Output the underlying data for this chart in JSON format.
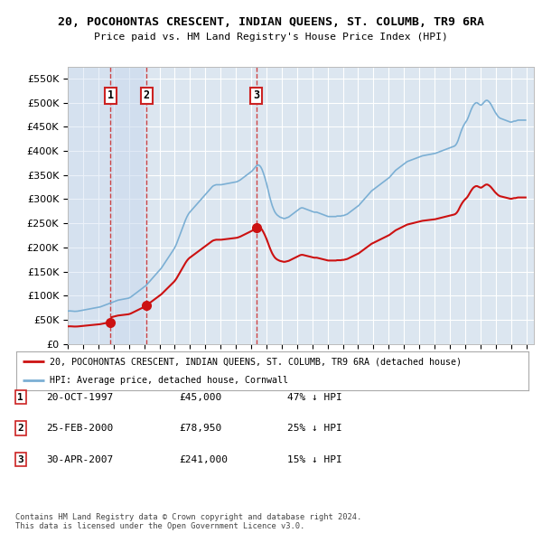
{
  "title": "20, POCOHONTAS CRESCENT, INDIAN QUEENS, ST. COLUMB, TR9 6RA",
  "subtitle": "Price paid vs. HM Land Registry's House Price Index (HPI)",
  "background_color": "#ffffff",
  "plot_bg_color": "#dce6f0",
  "grid_color": "#ffffff",
  "ylim": [
    0,
    575000
  ],
  "yticks": [
    0,
    50000,
    100000,
    150000,
    200000,
    250000,
    300000,
    350000,
    400000,
    450000,
    500000,
    550000
  ],
  "xlim_start": 1995.0,
  "xlim_end": 2025.5,
  "sale_dates": [
    1997.8,
    2000.15,
    2007.33
  ],
  "sale_prices": [
    45000,
    78950,
    241000
  ],
  "sale_labels": [
    "1",
    "2",
    "3"
  ],
  "hpi_line_color": "#7bafd4",
  "price_line_color": "#cc1111",
  "sale_dot_color": "#cc1111",
  "dashed_line_color": "#cc3333",
  "legend_line1": "20, POCOHONTAS CRESCENT, INDIAN QUEENS, ST. COLUMB, TR9 6RA (detached house)",
  "legend_line2": "HPI: Average price, detached house, Cornwall",
  "table_entries": [
    {
      "num": "1",
      "date": "20-OCT-1997",
      "price": "£45,000",
      "note": "47% ↓ HPI"
    },
    {
      "num": "2",
      "date": "25-FEB-2000",
      "price": "£78,950",
      "note": "25% ↓ HPI"
    },
    {
      "num": "3",
      "date": "30-APR-2007",
      "price": "£241,000",
      "note": "15% ↓ HPI"
    }
  ],
  "footer": "Contains HM Land Registry data © Crown copyright and database right 2024.\nThis data is licensed under the Open Government Licence v3.0.",
  "hpi_data": {
    "1995-01": 68000,
    "1995-02": 68200,
    "1995-03": 68100,
    "1995-04": 67800,
    "1995-05": 67500,
    "1995-06": 67300,
    "1995-07": 67400,
    "1995-08": 67600,
    "1995-09": 68000,
    "1995-10": 68500,
    "1995-11": 69000,
    "1995-12": 69500,
    "1996-01": 70000,
    "1996-02": 70500,
    "1996-03": 71000,
    "1996-04": 71500,
    "1996-05": 72000,
    "1996-06": 72500,
    "1996-07": 73000,
    "1996-08": 73500,
    "1996-09": 74000,
    "1996-10": 74500,
    "1996-11": 75000,
    "1996-12": 75500,
    "1997-01": 76000,
    "1997-02": 76500,
    "1997-03": 77500,
    "1997-04": 78500,
    "1997-05": 79500,
    "1997-06": 80500,
    "1997-07": 81500,
    "1997-08": 82500,
    "1997-09": 83500,
    "1997-10": 84500,
    "1997-11": 85500,
    "1997-12": 86500,
    "1998-01": 87500,
    "1998-02": 88500,
    "1998-03": 89500,
    "1998-04": 90500,
    "1998-05": 91000,
    "1998-06": 91500,
    "1998-07": 92000,
    "1998-08": 92500,
    "1998-09": 93000,
    "1998-10": 93500,
    "1998-11": 94000,
    "1998-12": 94500,
    "1999-01": 95500,
    "1999-02": 97000,
    "1999-03": 99000,
    "1999-04": 101000,
    "1999-05": 103000,
    "1999-06": 105000,
    "1999-07": 107000,
    "1999-08": 109000,
    "1999-09": 111000,
    "1999-10": 113000,
    "1999-11": 115000,
    "1999-12": 117000,
    "2000-01": 119000,
    "2000-02": 121000,
    "2000-03": 124000,
    "2000-04": 127000,
    "2000-05": 130000,
    "2000-06": 133000,
    "2000-07": 136000,
    "2000-08": 139000,
    "2000-09": 142000,
    "2000-10": 145000,
    "2000-11": 148000,
    "2000-12": 151000,
    "2001-01": 154000,
    "2001-02": 157000,
    "2001-03": 161000,
    "2001-04": 165000,
    "2001-05": 169000,
    "2001-06": 173000,
    "2001-07": 177000,
    "2001-08": 181000,
    "2001-09": 185000,
    "2001-10": 189000,
    "2001-11": 193000,
    "2001-12": 197000,
    "2002-01": 202000,
    "2002-02": 208000,
    "2002-03": 215000,
    "2002-04": 222000,
    "2002-05": 229000,
    "2002-06": 236000,
    "2002-07": 243000,
    "2002-08": 250000,
    "2002-09": 257000,
    "2002-10": 263000,
    "2002-11": 268000,
    "2002-12": 272000,
    "2003-01": 275000,
    "2003-02": 278000,
    "2003-03": 281000,
    "2003-04": 284000,
    "2003-05": 287000,
    "2003-06": 290000,
    "2003-07": 293000,
    "2003-08": 296000,
    "2003-09": 299000,
    "2003-10": 302000,
    "2003-11": 305000,
    "2003-12": 308000,
    "2004-01": 311000,
    "2004-02": 314000,
    "2004-03": 317000,
    "2004-04": 320000,
    "2004-05": 323000,
    "2004-06": 326000,
    "2004-07": 328000,
    "2004-08": 329000,
    "2004-09": 330000,
    "2004-10": 330000,
    "2004-11": 330000,
    "2004-12": 330000,
    "2005-01": 330000,
    "2005-02": 330500,
    "2005-03": 331000,
    "2005-04": 331500,
    "2005-05": 332000,
    "2005-06": 332500,
    "2005-07": 333000,
    "2005-08": 333500,
    "2005-09": 334000,
    "2005-10": 334500,
    "2005-11": 335000,
    "2005-12": 335500,
    "2006-01": 336000,
    "2006-02": 337000,
    "2006-03": 338500,
    "2006-04": 340000,
    "2006-05": 342000,
    "2006-06": 344000,
    "2006-07": 346000,
    "2006-08": 348000,
    "2006-09": 350000,
    "2006-10": 352000,
    "2006-11": 354000,
    "2006-12": 356000,
    "2007-01": 358000,
    "2007-02": 361000,
    "2007-03": 364000,
    "2007-04": 367000,
    "2007-05": 370000,
    "2007-06": 371000,
    "2007-07": 370000,
    "2007-08": 367000,
    "2007-09": 362000,
    "2007-10": 355000,
    "2007-11": 347000,
    "2007-12": 338000,
    "2008-01": 328000,
    "2008-02": 317000,
    "2008-03": 306000,
    "2008-04": 296000,
    "2008-05": 287000,
    "2008-06": 280000,
    "2008-07": 274000,
    "2008-08": 270000,
    "2008-09": 267000,
    "2008-10": 265000,
    "2008-11": 263000,
    "2008-12": 262000,
    "2009-01": 261000,
    "2009-02": 260000,
    "2009-03": 260000,
    "2009-04": 261000,
    "2009-05": 262000,
    "2009-06": 263000,
    "2009-07": 265000,
    "2009-08": 267000,
    "2009-09": 269000,
    "2009-10": 271000,
    "2009-11": 273000,
    "2009-12": 275000,
    "2010-01": 277000,
    "2010-02": 279000,
    "2010-03": 281000,
    "2010-04": 282000,
    "2010-05": 282000,
    "2010-06": 281000,
    "2010-07": 280000,
    "2010-08": 279000,
    "2010-09": 278000,
    "2010-10": 277000,
    "2010-11": 276000,
    "2010-12": 275000,
    "2011-01": 274000,
    "2011-02": 273000,
    "2011-03": 273000,
    "2011-04": 273000,
    "2011-05": 272000,
    "2011-06": 271000,
    "2011-07": 270000,
    "2011-08": 269000,
    "2011-09": 268000,
    "2011-10": 267000,
    "2011-11": 266000,
    "2011-12": 265000,
    "2012-01": 264000,
    "2012-02": 264000,
    "2012-03": 264000,
    "2012-04": 264000,
    "2012-05": 264000,
    "2012-06": 264000,
    "2012-07": 264000,
    "2012-08": 265000,
    "2012-09": 265000,
    "2012-10": 265000,
    "2012-11": 265000,
    "2012-12": 266000,
    "2013-01": 266000,
    "2013-02": 267000,
    "2013-03": 268000,
    "2013-04": 269000,
    "2013-05": 271000,
    "2013-06": 273000,
    "2013-07": 275000,
    "2013-08": 277000,
    "2013-09": 279000,
    "2013-10": 281000,
    "2013-11": 283000,
    "2013-12": 285000,
    "2014-01": 287000,
    "2014-02": 290000,
    "2014-03": 293000,
    "2014-04": 296000,
    "2014-05": 299000,
    "2014-06": 302000,
    "2014-07": 305000,
    "2014-08": 308000,
    "2014-09": 311000,
    "2014-10": 314000,
    "2014-11": 317000,
    "2014-12": 319000,
    "2015-01": 321000,
    "2015-02": 323000,
    "2015-03": 325000,
    "2015-04": 327000,
    "2015-05": 329000,
    "2015-06": 331000,
    "2015-07": 333000,
    "2015-08": 335000,
    "2015-09": 337000,
    "2015-10": 339000,
    "2015-11": 341000,
    "2015-12": 343000,
    "2016-01": 345000,
    "2016-02": 348000,
    "2016-03": 351000,
    "2016-04": 354000,
    "2016-05": 357000,
    "2016-06": 360000,
    "2016-07": 362000,
    "2016-08": 364000,
    "2016-09": 366000,
    "2016-10": 368000,
    "2016-11": 370000,
    "2016-12": 372000,
    "2017-01": 374000,
    "2017-02": 376000,
    "2017-03": 378000,
    "2017-04": 379000,
    "2017-05": 380000,
    "2017-06": 381000,
    "2017-07": 382000,
    "2017-08": 383000,
    "2017-09": 384000,
    "2017-10": 385000,
    "2017-11": 386000,
    "2017-12": 387000,
    "2018-01": 388000,
    "2018-02": 389000,
    "2018-03": 390000,
    "2018-04": 390500,
    "2018-05": 391000,
    "2018-06": 391500,
    "2018-07": 392000,
    "2018-08": 392500,
    "2018-09": 393000,
    "2018-10": 393500,
    "2018-11": 394000,
    "2018-12": 394500,
    "2019-01": 395000,
    "2019-02": 396000,
    "2019-03": 397000,
    "2019-04": 398000,
    "2019-05": 399000,
    "2019-06": 400000,
    "2019-07": 401000,
    "2019-08": 402000,
    "2019-09": 403000,
    "2019-10": 404000,
    "2019-11": 405000,
    "2019-12": 406000,
    "2020-01": 407000,
    "2020-02": 408000,
    "2020-03": 409000,
    "2020-04": 410000,
    "2020-05": 412000,
    "2020-06": 416000,
    "2020-07": 422000,
    "2020-08": 430000,
    "2020-09": 438000,
    "2020-10": 445000,
    "2020-11": 451000,
    "2020-12": 456000,
    "2021-01": 460000,
    "2021-02": 464000,
    "2021-03": 470000,
    "2021-04": 477000,
    "2021-05": 484000,
    "2021-06": 490000,
    "2021-07": 495000,
    "2021-08": 498000,
    "2021-09": 500000,
    "2021-10": 500000,
    "2021-11": 498000,
    "2021-12": 496000,
    "2022-01": 495000,
    "2022-02": 497000,
    "2022-03": 500000,
    "2022-04": 503000,
    "2022-05": 505000,
    "2022-06": 505000,
    "2022-07": 503000,
    "2022-08": 500000,
    "2022-09": 496000,
    "2022-10": 491000,
    "2022-11": 486000,
    "2022-12": 481000,
    "2023-01": 477000,
    "2023-02": 473000,
    "2023-03": 470000,
    "2023-04": 468000,
    "2023-05": 467000,
    "2023-06": 466000,
    "2023-07": 465000,
    "2023-08": 464000,
    "2023-09": 463000,
    "2023-10": 462000,
    "2023-11": 461000,
    "2023-12": 460000,
    "2024-01": 460000,
    "2024-02": 461000,
    "2024-03": 462000,
    "2024-04": 462000,
    "2024-05": 463000,
    "2024-06": 464000,
    "2024-07": 464000,
    "2024-08": 464000,
    "2024-09": 464000,
    "2024-10": 464000,
    "2024-11": 464000,
    "2024-12": 464000
  }
}
